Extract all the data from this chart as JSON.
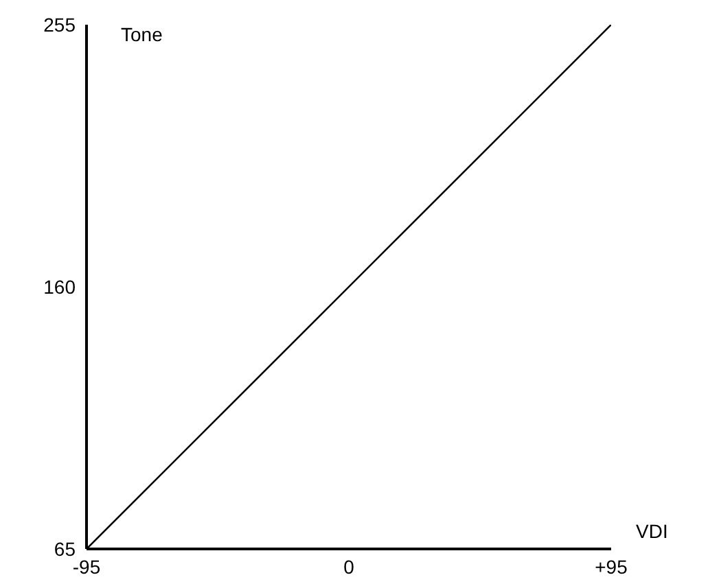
{
  "chart_data": {
    "type": "line",
    "xlabel": "VDI",
    "ylabel": "Tone",
    "x": [
      -95,
      95
    ],
    "series": [
      {
        "color": "#000000",
        "values": [
          65,
          255
        ]
      }
    ],
    "xlim": [
      -95,
      95
    ],
    "xticks": [
      -95,
      0,
      {
        "value": 95,
        "label": "+95"
      }
    ],
    "ylim": [
      65,
      255
    ],
    "yticks": [
      65,
      160,
      255
    ],
    "grid": false,
    "legend": false,
    "marker": "none",
    "line_style": "solid"
  }
}
